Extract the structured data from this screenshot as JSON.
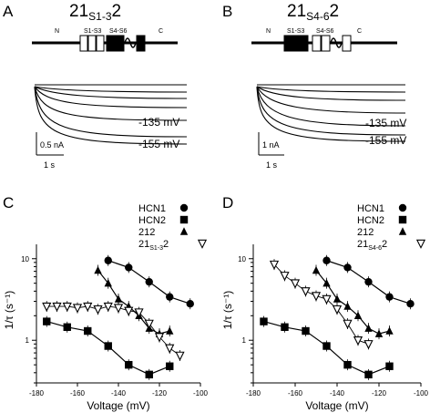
{
  "panels": {
    "A": {
      "letter": "A",
      "title_main": "21",
      "title_sub": "S1-3",
      "title_end": "2",
      "domains": {
        "n": "N",
        "s1s3": "S1-S3",
        "s4s6": "S4-S6",
        "c": "C"
      },
      "trace_labels": [
        "-135 mV",
        "-155 mV"
      ],
      "scale_current": "0.5 nA",
      "scale_time": "1 s"
    },
    "B": {
      "letter": "B",
      "title_main": "21",
      "title_sub": "S4-6",
      "title_end": "2",
      "domains": {
        "n": "N",
        "s1s3": "S1-S3",
        "s4s6": "S4-S6",
        "c": "C"
      },
      "trace_labels": [
        "-135 mV",
        "-155 mV"
      ],
      "scale_current": "1 nA",
      "scale_time": "1 s"
    },
    "C": {
      "letter": "C"
    },
    "D": {
      "letter": "D"
    }
  },
  "chart_data": [
    {
      "type": "scatter",
      "panel": "C",
      "xlabel": "Voltage (mV)",
      "ylabel": "1/τ (s⁻¹)",
      "xlim": [
        -180,
        -100
      ],
      "ylim": [
        0.3,
        15
      ],
      "yscale": "log",
      "xticks": [
        "-180",
        "-160",
        "-140",
        "-120",
        "-100"
      ],
      "yticks": [
        "1",
        "10"
      ],
      "legend_position": "top-right",
      "series": [
        {
          "name": "HCN1",
          "marker": "circle",
          "line": true,
          "x": [
            -145,
            -135,
            -125,
            -115,
            -105
          ],
          "y": [
            9.5,
            7.8,
            5.2,
            3.4,
            2.8
          ]
        },
        {
          "name": "HCN2",
          "marker": "square",
          "line": true,
          "x": [
            -175,
            -165,
            -155,
            -145,
            -135,
            -125,
            -115
          ],
          "y": [
            1.7,
            1.45,
            1.3,
            0.85,
            0.5,
            0.38,
            0.48
          ]
        },
        {
          "name": "212",
          "marker": "triangle-up",
          "line": true,
          "x": [
            -150,
            -145,
            -140,
            -135,
            -130,
            -125,
            -120,
            -115
          ],
          "y": [
            7.2,
            5.0,
            3.2,
            2.6,
            2.0,
            1.4,
            1.2,
            1.3
          ]
        },
        {
          "name": "21",
          "name_sub": "S1-3",
          "name_end": "2",
          "marker": "triangle-down-open",
          "line": false,
          "x": [
            -175,
            -170,
            -165,
            -160,
            -155,
            -150,
            -145,
            -140,
            -135,
            -130,
            -125,
            -120,
            -115,
            -110
          ],
          "y": [
            2.6,
            2.6,
            2.6,
            2.5,
            2.6,
            2.4,
            2.6,
            2.5,
            2.3,
            2.2,
            1.6,
            1.1,
            0.8,
            0.65
          ]
        }
      ]
    },
    {
      "type": "scatter",
      "panel": "D",
      "xlabel": "Voltage (mV)",
      "ylabel": "1/τ (s⁻¹)",
      "xlim": [
        -180,
        -100
      ],
      "ylim": [
        0.3,
        15
      ],
      "yscale": "log",
      "xticks": [
        "-180",
        "-160",
        "-140",
        "-120",
        "-100"
      ],
      "yticks": [
        "1",
        "10"
      ],
      "legend_position": "top-right",
      "series": [
        {
          "name": "HCN1",
          "marker": "circle",
          "line": true,
          "x": [
            -145,
            -135,
            -125,
            -115,
            -105
          ],
          "y": [
            9.5,
            7.8,
            5.2,
            3.4,
            2.8
          ]
        },
        {
          "name": "HCN2",
          "marker": "square",
          "line": true,
          "x": [
            -175,
            -165,
            -155,
            -145,
            -135,
            -125,
            -115
          ],
          "y": [
            1.7,
            1.45,
            1.3,
            0.85,
            0.5,
            0.38,
            0.48
          ]
        },
        {
          "name": "212",
          "marker": "triangle-up",
          "line": true,
          "x": [
            -150,
            -145,
            -140,
            -135,
            -130,
            -125,
            -120,
            -115
          ],
          "y": [
            7.2,
            5.0,
            3.2,
            2.6,
            2.0,
            1.4,
            1.2,
            1.3
          ]
        },
        {
          "name": "21",
          "name_sub": "S4-6",
          "name_end": "2",
          "marker": "triangle-down-open",
          "line": false,
          "x": [
            -170,
            -165,
            -160,
            -155,
            -150,
            -145,
            -140,
            -135,
            -130,
            -125
          ],
          "y": [
            8.5,
            6.2,
            5.0,
            4.0,
            3.5,
            3.2,
            2.4,
            1.6,
            1.0,
            0.9
          ]
        }
      ]
    }
  ]
}
